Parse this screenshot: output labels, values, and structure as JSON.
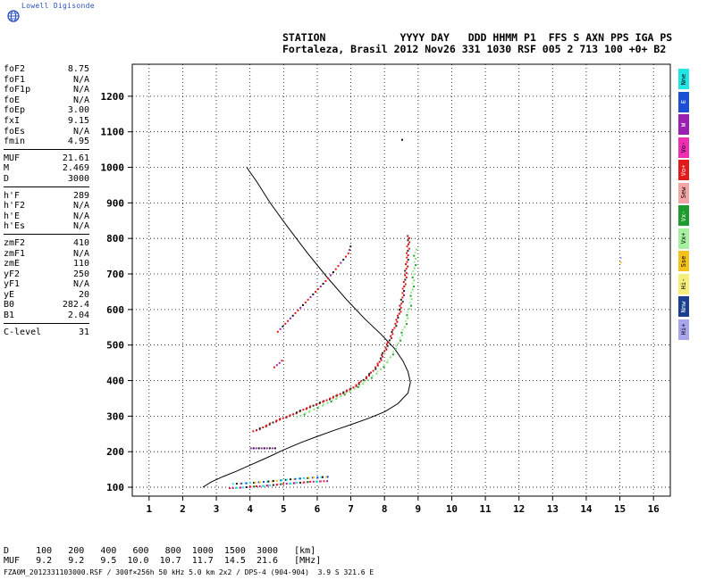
{
  "brand": {
    "name": "Lowell Digisonde",
    "icon": "globe-icon",
    "color": "#2a52be"
  },
  "header": {
    "line1": "STATION            YYYY DAY   DDD HHMM P1  FFS S AXN PPS IGA PS",
    "line2": "Fortaleza, Brasil 2012 Nov26 331 1030 RSF 005 2 713 100 +0+ B2"
  },
  "params": [
    [
      [
        "foF2",
        "8.75"
      ],
      [
        "foF1",
        "N/A"
      ],
      [
        "foF1p",
        "N/A"
      ],
      [
        "foE",
        "N/A"
      ],
      [
        "foEp",
        "3.00"
      ],
      [
        "fxI",
        "9.15"
      ],
      [
        "foEs",
        "N/A"
      ],
      [
        "fmin",
        "4.95"
      ]
    ],
    [
      [
        "MUF",
        "21.61"
      ],
      [
        "M",
        "2.469"
      ],
      [
        "D",
        "3000"
      ]
    ],
    [
      [
        "h'F",
        "289"
      ],
      [
        "h'F2",
        "N/A"
      ],
      [
        "h'E",
        "N/A"
      ],
      [
        "h'Es",
        "N/A"
      ]
    ],
    [
      [
        "zmF2",
        "410"
      ],
      [
        "zmF1",
        "N/A"
      ],
      [
        "zmE",
        "110"
      ],
      [
        "yF2",
        "250"
      ],
      [
        "yF1",
        "N/A"
      ],
      [
        "yE",
        "20"
      ],
      [
        "B0",
        "282.4"
      ],
      [
        "B1",
        "2.04"
      ]
    ],
    [
      [
        "C-level",
        "31"
      ]
    ]
  ],
  "legend": [
    {
      "label": "Nne",
      "color": "#22e6e6"
    },
    {
      "label": "E",
      "color": "#1a4fd6"
    },
    {
      "label": "W",
      "color": "#9b1fb0"
    },
    {
      "label": "Vo-",
      "color": "#ee2fb4"
    },
    {
      "label": "Vo+",
      "color": "#e31a1a"
    },
    {
      "label": "Sew",
      "color": "#f4a6a6"
    },
    {
      "label": "Vx-",
      "color": "#1e9b2e"
    },
    {
      "label": "Vx+",
      "color": "#a6f0a0"
    },
    {
      "label": "Sse",
      "color": "#f4c21a"
    },
    {
      "label": "Hi-",
      "color": "#f6f07a"
    },
    {
      "label": "Nnw",
      "color": "#1a3f8f"
    },
    {
      "label": "Hi+",
      "color": "#a9a6ee"
    }
  ],
  "footer": {
    "d_row": "D     100   200   400   600   800  1000  1500  3000   [km]",
    "muf_row": "MUF   9.2   9.2   9.5  10.0  10.7  11.7  14.5  21.6   [MHz]",
    "file": "FZA0M_2012331103000.RSF / 300f×256h 50 kHz 5.0 km 2x2 / DPS-4 (904-904)  3.9 S 321.6 E"
  },
  "chart_data": {
    "type": "scatter",
    "xlim": [
      0.5,
      16.5
    ],
    "ylim": [
      75,
      1290
    ],
    "x_ticks": [
      "1",
      "2",
      "3",
      "4",
      "5",
      "6",
      "7",
      "8",
      "9",
      "10",
      "11",
      "12",
      "13",
      "14",
      "15",
      "16"
    ],
    "y_ticks": [
      "100",
      "200",
      "300",
      "400",
      "500",
      "600",
      "700",
      "800",
      "900",
      "1000",
      "1100",
      "1200"
    ],
    "grid": true,
    "profile": [
      [
        2.6,
        100
      ],
      [
        2.85,
        115
      ],
      [
        3.2,
        130
      ],
      [
        3.6,
        145
      ],
      [
        4.0,
        162
      ],
      [
        4.5,
        183
      ],
      [
        5.0,
        205
      ],
      [
        5.5,
        225
      ],
      [
        6.0,
        243
      ],
      [
        6.5,
        260
      ],
      [
        7.0,
        276
      ],
      [
        7.5,
        293
      ],
      [
        8.0,
        312
      ],
      [
        8.4,
        335
      ],
      [
        8.7,
        365
      ],
      [
        8.77,
        395
      ],
      [
        8.7,
        425
      ],
      [
        8.55,
        455
      ],
      [
        8.3,
        490
      ],
      [
        7.9,
        530
      ],
      [
        7.4,
        575
      ],
      [
        6.9,
        625
      ],
      [
        6.3,
        690
      ],
      [
        5.7,
        760
      ],
      [
        5.1,
        835
      ],
      [
        4.6,
        900
      ],
      [
        4.2,
        960
      ],
      [
        3.9,
        1000
      ]
    ],
    "trace_o": [
      [
        4.1,
        260
      ],
      [
        4.3,
        268
      ],
      [
        4.6,
        282
      ],
      [
        4.9,
        295
      ],
      [
        5.2,
        305
      ],
      [
        5.5,
        318
      ],
      [
        5.8,
        330
      ],
      [
        6.2,
        345
      ],
      [
        6.6,
        362
      ],
      [
        7.0,
        380
      ],
      [
        7.3,
        400
      ],
      [
        7.6,
        425
      ],
      [
        7.8,
        450
      ],
      [
        7.95,
        480
      ],
      [
        8.1,
        510
      ],
      [
        8.25,
        545
      ],
      [
        8.4,
        585
      ],
      [
        8.5,
        630
      ],
      [
        8.58,
        680
      ],
      [
        8.64,
        730
      ],
      [
        8.68,
        780
      ],
      [
        8.7,
        815
      ]
    ],
    "trace_x": [
      [
        5.4,
        300
      ],
      [
        5.8,
        318
      ],
      [
        6.2,
        336
      ],
      [
        6.6,
        355
      ],
      [
        7.0,
        375
      ],
      [
        7.4,
        398
      ],
      [
        7.8,
        428
      ],
      [
        8.1,
        460
      ],
      [
        8.35,
        500
      ],
      [
        8.55,
        545
      ],
      [
        8.7,
        595
      ],
      [
        8.8,
        650
      ],
      [
        8.86,
        710
      ],
      [
        8.9,
        780
      ]
    ],
    "trace_multi": [
      [
        4.8,
        540
      ],
      [
        5.1,
        570
      ],
      [
        5.4,
        600
      ],
      [
        5.7,
        630
      ],
      [
        6.0,
        660
      ],
      [
        6.3,
        690
      ],
      [
        6.6,
        725
      ],
      [
        6.9,
        760
      ],
      [
        7.0,
        790
      ]
    ],
    "trace_ghost": [
      [
        4.7,
        440
      ],
      [
        4.85,
        452
      ],
      [
        5.0,
        465
      ]
    ],
    "trace_e": [
      [
        3.4,
        100
      ],
      [
        3.8,
        102
      ],
      [
        4.2,
        105
      ],
      [
        4.6,
        108
      ],
      [
        5.0,
        112
      ],
      [
        5.4,
        115
      ],
      [
        5.8,
        118
      ],
      [
        6.3,
        120
      ]
    ],
    "trace_misc": [
      [
        4.0,
        212
      ],
      [
        4.8,
        212
      ],
      [
        8.5,
        1080
      ],
      [
        8.7,
        1080
      ],
      [
        15.0,
        735
      ],
      [
        15.0,
        760
      ]
    ]
  }
}
